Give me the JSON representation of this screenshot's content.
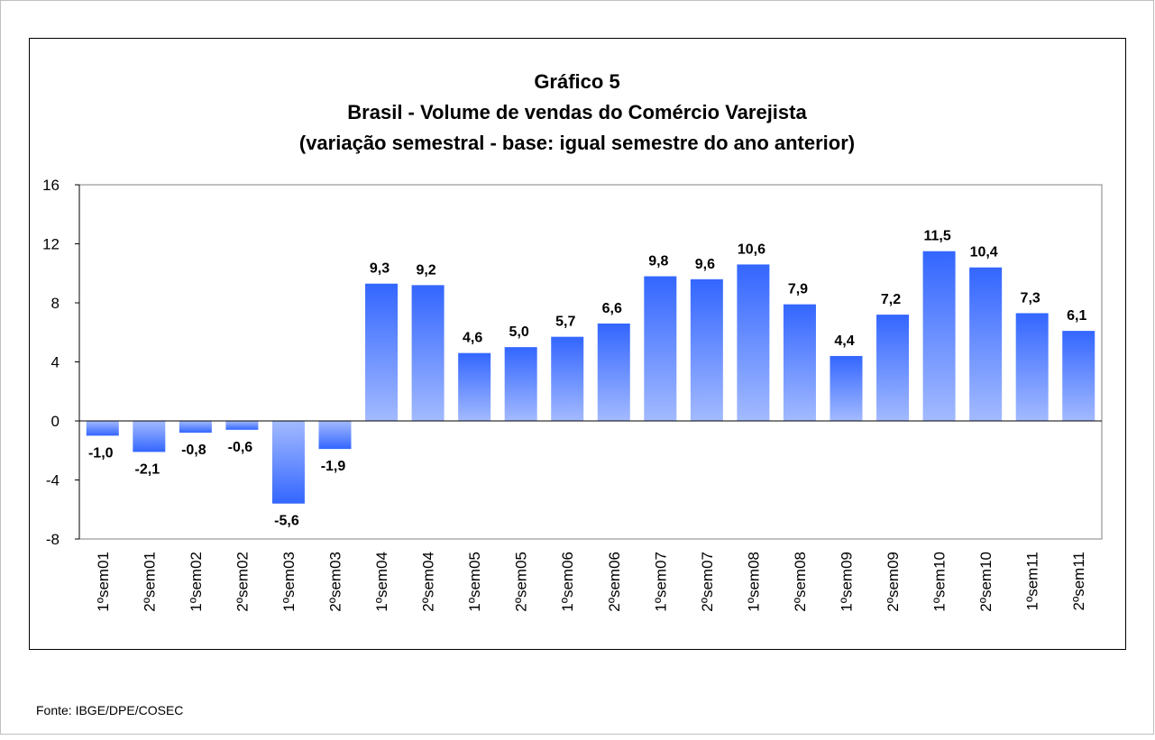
{
  "chart_data": {
    "type": "bar",
    "title": [
      "Gráfico 5",
      "Brasil - Volume de vendas do Comércio Varejista",
      "(variação semestral - base: igual semestre do ano anterior)"
    ],
    "categories": [
      "1ºsem01",
      "2ºsem01",
      "1ºsem02",
      "2ºsem02",
      "1ºsem03",
      "2ºsem03",
      "1ºsem04",
      "2ºsem04",
      "1ºsem05",
      "2ºsem05",
      "1ºsem06",
      "2ºsem06",
      "1ºsem07",
      "2ºsem07",
      "1ºsem08",
      "2ºsem08",
      "1ºsem09",
      "2ºsem09",
      "1ºsem10",
      "2ºsem10",
      "1ºsem11",
      "2ºsem11"
    ],
    "values": [
      -1.0,
      -2.1,
      -0.8,
      -0.6,
      -5.6,
      -1.9,
      9.3,
      9.2,
      4.6,
      5.0,
      5.7,
      6.6,
      9.8,
      9.6,
      10.6,
      7.9,
      4.4,
      7.2,
      11.5,
      10.4,
      7.3,
      6.1
    ],
    "value_labels": [
      "-1,0",
      "-2,1",
      "-0,8",
      "-0,6",
      "-5,6",
      "-1,9",
      "9,3",
      "9,2",
      "4,6",
      "5,0",
      "5,7",
      "6,6",
      "9,8",
      "9,6",
      "10,6",
      "7,9",
      "4,4",
      "7,2",
      "11,5",
      "10,4",
      "7,3",
      "6,1"
    ],
    "color": "#3366ff",
    "ylim": [
      -8,
      16
    ],
    "yticks": [
      -8,
      -4,
      0,
      4,
      8,
      12,
      16
    ]
  },
  "source": "Fonte: IBGE/DPE/COSEC"
}
